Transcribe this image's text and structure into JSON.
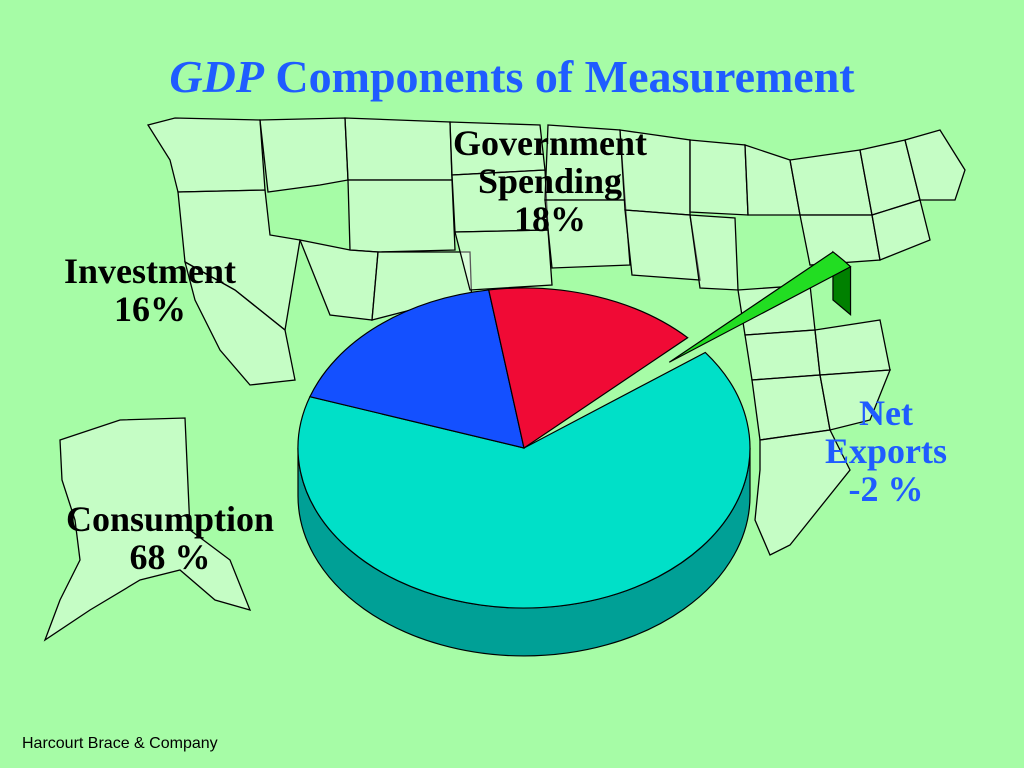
{
  "title": {
    "italic": "GDP",
    "rest": " Components of Measurement"
  },
  "footer": "Harcourt Brace & Company",
  "labels": {
    "government": {
      "name1": "Government",
      "name2": "Spending",
      "pct": "18%"
    },
    "investment": {
      "name": "Investment",
      "pct": "16%"
    },
    "consumption": {
      "name": "Consumption",
      "pct": "68 %"
    },
    "net_exports": {
      "name1": "Net",
      "name2": "Exports",
      "pct": "-2 %"
    }
  },
  "chart_data": {
    "type": "pie",
    "title": "GDP Components of Measurement",
    "slices": [
      {
        "name": "Consumption",
        "value": 68,
        "color": "#00e0c8",
        "side_color": "#00a096"
      },
      {
        "name": "Government Spending",
        "value": 18,
        "color": "#1450ff",
        "side_color": "#0a2a99"
      },
      {
        "name": "Investment",
        "value": 16,
        "color": "#f00a35",
        "side_color": "#a00020"
      },
      {
        "name": "Net Exports",
        "value": -2,
        "color": "#22dd22",
        "side_color": "#008000"
      }
    ]
  }
}
